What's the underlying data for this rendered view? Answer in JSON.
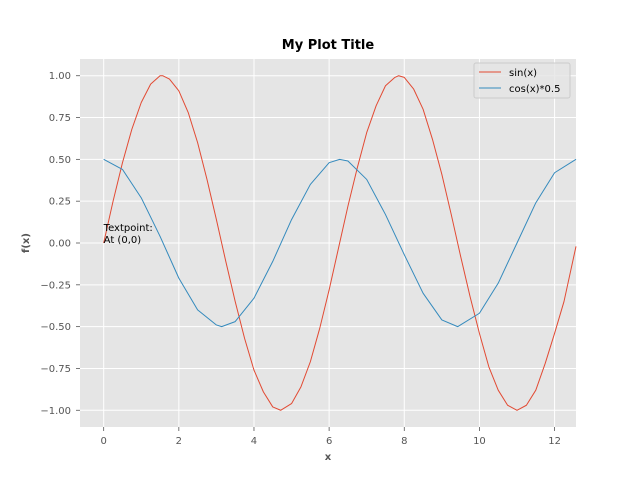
{
  "chart_data": {
    "type": "line",
    "title": "My Plot Title",
    "xlabel": "x",
    "ylabel": "f(x)",
    "xlim": [
      -0.63,
      12.57
    ],
    "ylim": [
      -1.1,
      1.1
    ],
    "xticks": [
      0,
      2,
      4,
      6,
      8,
      10,
      12
    ],
    "xtick_labels": [
      "0",
      "2",
      "4",
      "6",
      "8",
      "10",
      "12"
    ],
    "yticks": [
      1.0,
      0.75,
      0.5,
      0.25,
      0.0,
      -0.25,
      -0.5,
      -0.75,
      -1.0
    ],
    "ytick_labels": [
      "1.00",
      "0.75",
      "0.50",
      "0.25",
      "0.00",
      "−0.25",
      "−0.50",
      "−0.75",
      "−1.00"
    ],
    "grid": true,
    "legend_position": "top-right",
    "series": [
      {
        "name": "sin(x)",
        "color": "#E24A33",
        "x": [
          0,
          0.25,
          0.5,
          0.75,
          1.0,
          1.25,
          1.5,
          1.57,
          1.75,
          2.0,
          2.25,
          2.5,
          2.75,
          3.0,
          3.25,
          3.5,
          3.75,
          4.0,
          4.25,
          4.5,
          4.71,
          5.0,
          5.25,
          5.5,
          5.75,
          6.0,
          6.25,
          6.5,
          6.75,
          7.0,
          7.25,
          7.5,
          7.75,
          7.85,
          8.0,
          8.25,
          8.5,
          8.75,
          9.0,
          9.25,
          9.5,
          9.75,
          10.0,
          10.25,
          10.5,
          10.75,
          11.0,
          11.25,
          11.5,
          11.75,
          12.0,
          12.25,
          12.57
        ],
        "y": [
          0.0,
          0.25,
          0.48,
          0.68,
          0.84,
          0.95,
          1.0,
          1.0,
          0.98,
          0.91,
          0.78,
          0.6,
          0.38,
          0.14,
          -0.11,
          -0.35,
          -0.57,
          -0.76,
          -0.89,
          -0.98,
          -1.0,
          -0.96,
          -0.86,
          -0.71,
          -0.51,
          -0.28,
          -0.03,
          0.22,
          0.45,
          0.66,
          0.82,
          0.94,
          0.99,
          1.0,
          0.99,
          0.92,
          0.8,
          0.62,
          0.41,
          0.17,
          -0.08,
          -0.32,
          -0.54,
          -0.74,
          -0.88,
          -0.97,
          -1.0,
          -0.97,
          -0.88,
          -0.72,
          -0.54,
          -0.35,
          -0.02
        ]
      },
      {
        "name": "cos(x)*0.5",
        "color": "#348ABD",
        "x": [
          0,
          0.5,
          1.0,
          1.5,
          2.0,
          2.5,
          3.0,
          3.14,
          3.5,
          4.0,
          4.5,
          5.0,
          5.5,
          6.0,
          6.28,
          6.5,
          7.0,
          7.5,
          8.0,
          8.5,
          9.0,
          9.42,
          10.0,
          10.5,
          11.0,
          11.5,
          12.0,
          12.57
        ],
        "y": [
          0.5,
          0.44,
          0.27,
          0.04,
          -0.21,
          -0.4,
          -0.49,
          -0.5,
          -0.47,
          -0.33,
          -0.11,
          0.14,
          0.35,
          0.48,
          0.5,
          0.49,
          0.38,
          0.17,
          -0.07,
          -0.3,
          -0.46,
          -0.5,
          -0.42,
          -0.24,
          0.0,
          0.24,
          0.42,
          0.5
        ]
      }
    ],
    "annotations": [
      {
        "text": "Textpoint:",
        "x": 0,
        "y": 0
      },
      {
        "text": "At (0,0)",
        "x": 0,
        "y": 0
      }
    ],
    "colors": {
      "plot_background": "#E5E5E5",
      "grid": "#FFFFFF",
      "tick_label": "#555555"
    }
  }
}
